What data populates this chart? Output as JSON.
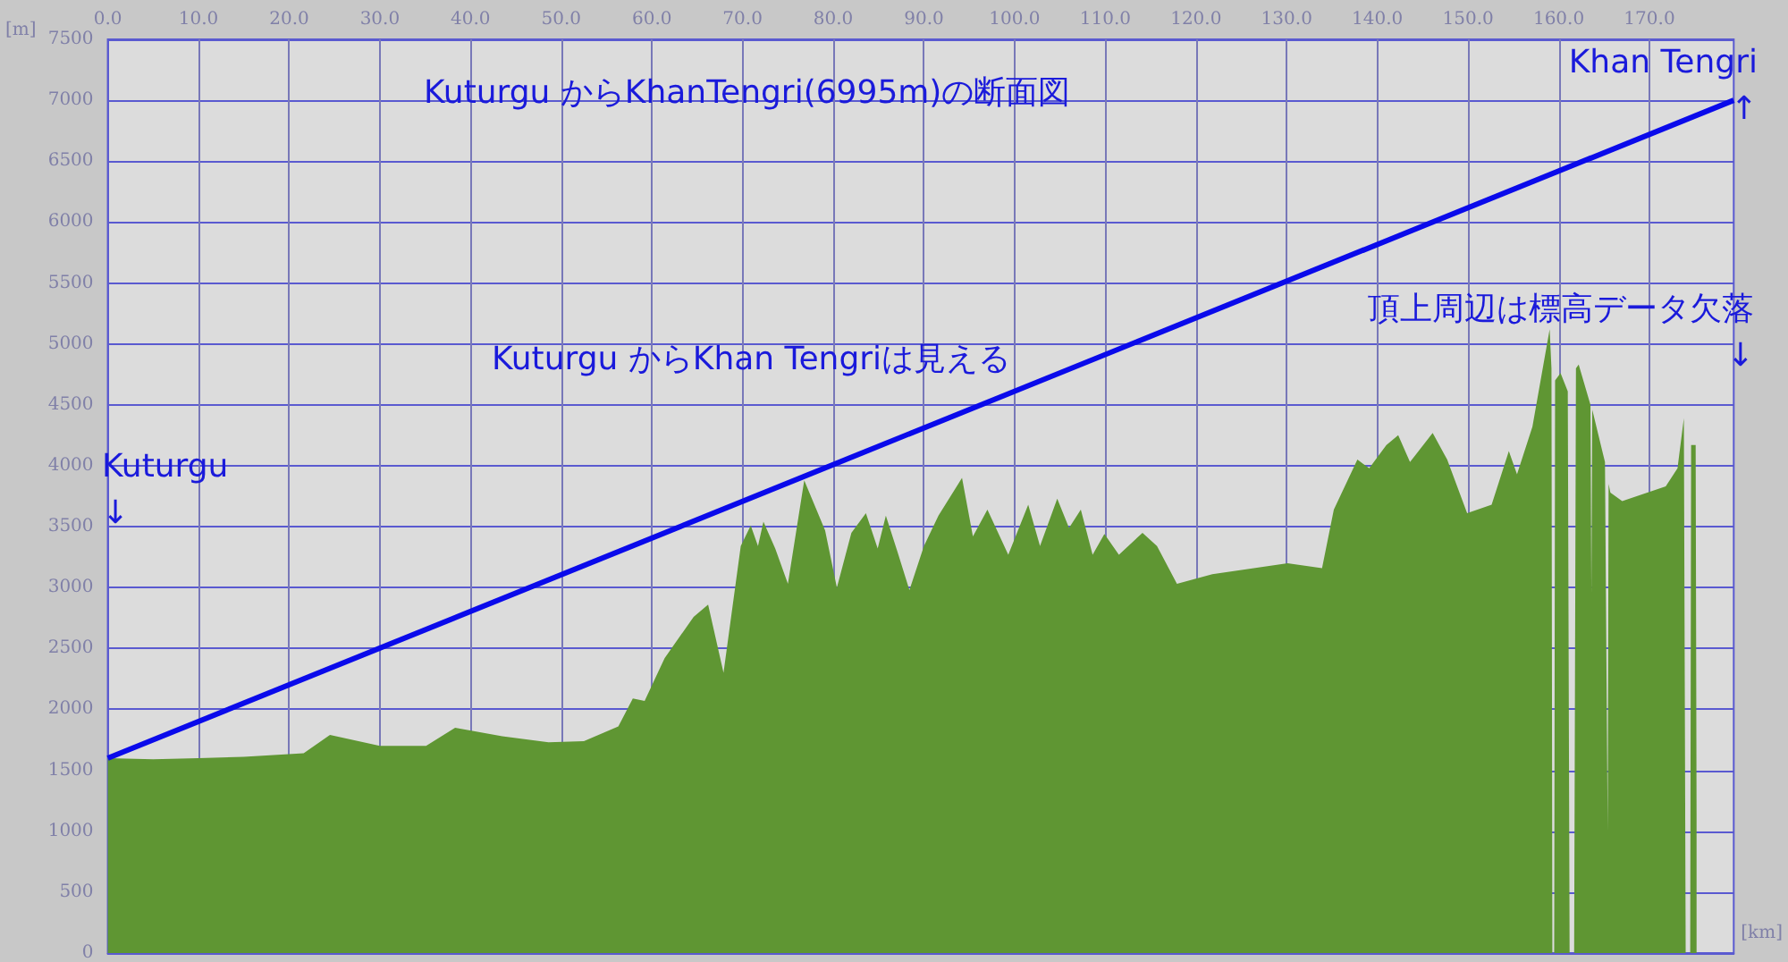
{
  "chart_data": {
    "type": "area",
    "title": "Kuturgu からKhanTengri(6995m)の断面図",
    "xlabel": "[km]",
    "ylabel": "[m]",
    "xlim": [
      0,
      179.3
    ],
    "ylim": [
      0,
      7500
    ],
    "xticks": [
      {
        "value": 0,
        "label": "0.0"
      },
      {
        "value": 10,
        "label": "10.0"
      },
      {
        "value": 20,
        "label": "20.0"
      },
      {
        "value": 30,
        "label": "30.0"
      },
      {
        "value": 40,
        "label": "40.0"
      },
      {
        "value": 50,
        "label": "50.0"
      },
      {
        "value": 60,
        "label": "60.0"
      },
      {
        "value": 70,
        "label": "70.0"
      },
      {
        "value": 80,
        "label": "80.0"
      },
      {
        "value": 90,
        "label": "90.0"
      },
      {
        "value": 100,
        "label": "100.0"
      },
      {
        "value": 110,
        "label": "110.0"
      },
      {
        "value": 120,
        "label": "120.0"
      },
      {
        "value": 130,
        "label": "130.0"
      },
      {
        "value": 140,
        "label": "140.0"
      },
      {
        "value": 150,
        "label": "150.0"
      },
      {
        "value": 160,
        "label": "160.0"
      },
      {
        "value": 170,
        "label": "170.0"
      }
    ],
    "yticks": [
      0,
      500,
      1000,
      1500,
      2000,
      2500,
      3000,
      3500,
      4000,
      4500,
      5000,
      5500,
      6000,
      6500,
      7000,
      7500
    ],
    "grid": true,
    "marker": "none",
    "series": [
      {
        "color": "#5f9633",
        "x": [
          0,
          5,
          10,
          15,
          21.6,
          24.5,
          30,
          35.1,
          38.3,
          43.5,
          48.6,
          52.5,
          56.3,
          57.9,
          59.2,
          61.4,
          64.6,
          66.2,
          67.9,
          69.8,
          70.9,
          71.7,
          72.3,
          73.6,
          75,
          76.8,
          79.1,
          80.4,
          82,
          83.6,
          84.9,
          85.8,
          87.1,
          88.4,
          90,
          91.6,
          94.2,
          95.4,
          97,
          99.3,
          101.5,
          102.8,
          104.7,
          106,
          107.3,
          108.6,
          109.9,
          111.5,
          114.1,
          115.7,
          117.9,
          121.8,
          130.1,
          133.9,
          135.2,
          137.8,
          139.1,
          141,
          142.3,
          143.6,
          146.1,
          147.7,
          149.9,
          152.6,
          154.5,
          155.4,
          157.1,
          159,
          159.2,
          159.3,
          159.5,
          159.6,
          160.2,
          161,
          161.2,
          161.7,
          161.9,
          162.2,
          163.5,
          163.6,
          163.7,
          165.1,
          165.4,
          165.5,
          165.7,
          167,
          171.8,
          173.1,
          173.8,
          174,
          174.5,
          174.6,
          175.1,
          175.2
        ],
        "values": [
          1600,
          1590,
          1600,
          1610,
          1640,
          1790,
          1700,
          1700,
          1850,
          1780,
          1730,
          1740,
          1860,
          2090,
          2070,
          2420,
          2760,
          2860,
          2300,
          3340,
          3510,
          3340,
          3540,
          3320,
          3030,
          3880,
          3470,
          3000,
          3450,
          3610,
          3320,
          3590,
          3290,
          2980,
          3340,
          3590,
          3900,
          3420,
          3640,
          3270,
          3680,
          3340,
          3730,
          3490,
          3640,
          3270,
          3440,
          3270,
          3450,
          3340,
          3030,
          3110,
          3200,
          3160,
          3640,
          4050,
          3980,
          4170,
          4250,
          4030,
          4270,
          4050,
          3610,
          3680,
          4120,
          3930,
          4320,
          5120,
          4800,
          0,
          0,
          4700,
          4760,
          4610,
          0,
          0,
          4800,
          4830,
          4500,
          2960,
          4460,
          4030,
          1000,
          3850,
          3780,
          3710,
          3830,
          3980,
          4390,
          0,
          0,
          4170,
          4170,
          1150
        ]
      },
      {
        "type": "line",
        "color": "#0a0aeb",
        "x": [
          0,
          179.3
        ],
        "values": [
          1600,
          7000
        ]
      }
    ],
    "annotations": [
      "Kuturgu\n↓",
      "Khan Tengri\n↑",
      "Kuturgu からKhan Tengriは見える",
      "頂上周辺は標高データ欠落\n↓"
    ]
  }
}
